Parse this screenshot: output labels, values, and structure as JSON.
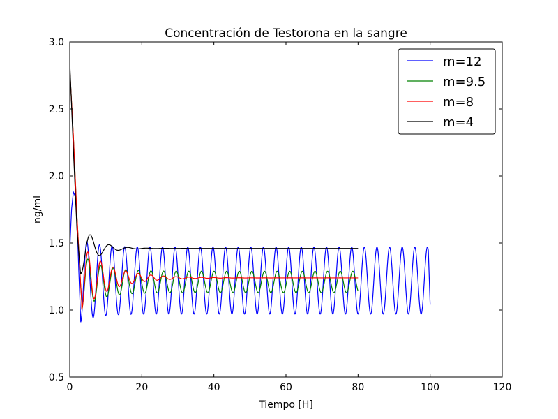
{
  "chart_data": {
    "type": "line",
    "title": "Concentración de Testorona en la sangre",
    "xlabel": "Tiempo [H]",
    "ylabel": "ng/ml",
    "xlim": [
      0,
      120
    ],
    "ylim": [
      0.5,
      3.0
    ],
    "xticks": [
      "0",
      "20",
      "40",
      "60",
      "80",
      "100",
      "120"
    ],
    "yticks": [
      "0.5",
      "1.0",
      "1.5",
      "2.0",
      "2.5",
      "3.0"
    ],
    "legend_position": "top-right",
    "grid": false,
    "series": [
      {
        "name": "m=12",
        "color": "#0000ff",
        "description": "damped oscillation settling into sustained oscillation between ~0.97 and ~1.47, period ~3.5 H",
        "x": [
          0,
          0.5,
          1,
          1.5,
          2,
          2.5,
          3,
          3.5,
          4,
          5,
          6,
          7,
          8,
          9,
          10,
          11,
          12,
          13,
          14,
          16,
          20,
          30,
          40,
          50,
          60,
          70,
          80,
          90,
          100
        ],
        "y": [
          1.45,
          1.75,
          1.88,
          1.85,
          1.7,
          1.3,
          0.95,
          1.1,
          1.35,
          1.61,
          1.2,
          0.98,
          1.55,
          1.0,
          1.5,
          0.98,
          1.5,
          0.97,
          1.48,
          0.97,
          1.47,
          0.97,
          1.47,
          0.97,
          1.47,
          0.97,
          1.47,
          0.97,
          1.04
        ],
        "x_end": 100,
        "high": 1.47,
        "low": 0.97
      },
      {
        "name": "m=9.5",
        "color": "#008000",
        "description": "damped oscillation converging to oscillation between ~1.12 and ~1.30, period ~3.5 H",
        "x": [
          0,
          1,
          2,
          3,
          3.5,
          4,
          5,
          6,
          7,
          8,
          10,
          12,
          15,
          20,
          30,
          40,
          50,
          60,
          70,
          80
        ],
        "y": [
          2.8,
          2.3,
          1.7,
          1.2,
          0.97,
          1.1,
          1.58,
          1.15,
          1.02,
          1.45,
          1.05,
          1.4,
          1.08,
          1.32,
          1.12,
          1.3,
          1.13,
          1.3,
          1.12,
          1.17
        ],
        "x_end": 80,
        "high": 1.29,
        "low": 1.13
      },
      {
        "name": "m=8",
        "color": "#ff0000",
        "description": "damped oscillation converging to ~1.24",
        "x": [
          0,
          1,
          2,
          3,
          3.5,
          4,
          5,
          6,
          7,
          8,
          10,
          12,
          15,
          20,
          30,
          40,
          50,
          60,
          70,
          80
        ],
        "y": [
          2.8,
          2.3,
          1.7,
          1.2,
          1.0,
          1.15,
          1.55,
          1.3,
          1.1,
          1.4,
          1.15,
          1.36,
          1.2,
          1.28,
          1.22,
          1.25,
          1.24,
          1.24,
          1.24,
          1.24
        ],
        "x_end": 80,
        "steady": 1.24
      },
      {
        "name": "m=4",
        "color": "#000000",
        "description": "quick damped oscillation converging to ~1.46",
        "x": [
          0,
          1,
          2,
          3,
          4,
          5,
          6,
          7,
          8,
          9,
          10,
          12,
          14,
          16,
          20,
          40,
          60,
          80
        ],
        "y": [
          2.85,
          2.2,
          1.6,
          1.27,
          1.35,
          1.58,
          1.55,
          1.4,
          1.44,
          1.49,
          1.47,
          1.44,
          1.47,
          1.46,
          1.46,
          1.46,
          1.46,
          1.46
        ],
        "x_end": 80,
        "steady": 1.46
      }
    ]
  }
}
